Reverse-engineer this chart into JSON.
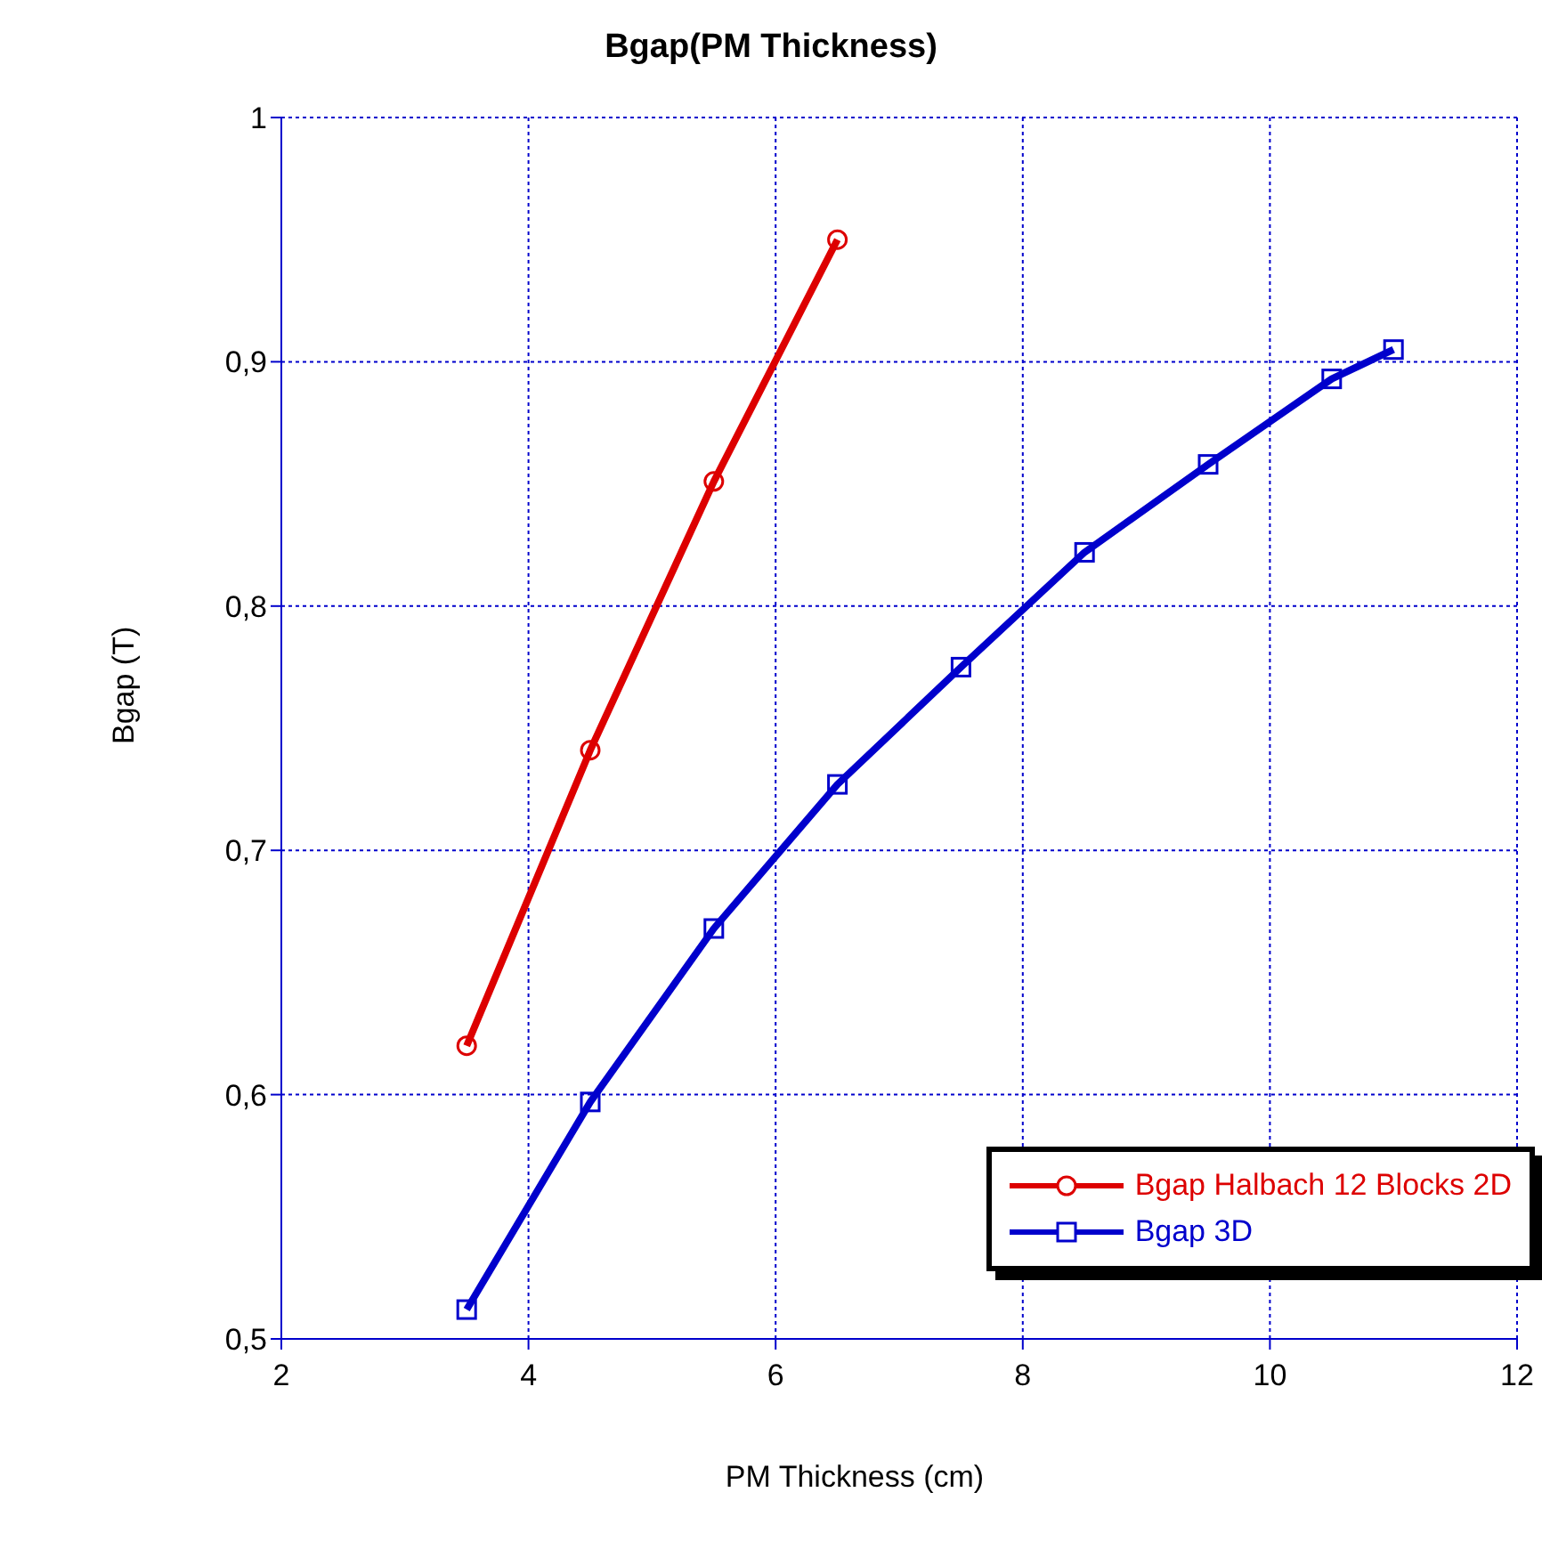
{
  "chart_data": {
    "type": "line",
    "title": "Bgap(PM Thickness)",
    "xlabel": "PM Thickness (cm)",
    "ylabel": "Bgap (T)",
    "xlim": [
      2,
      12
    ],
    "xticks": [
      2,
      4,
      6,
      8,
      10,
      12
    ],
    "ylim": [
      0.5,
      1
    ],
    "yticks": [
      {
        "value": 0.5,
        "label": "0,5"
      },
      {
        "value": 0.6,
        "label": "0,6"
      },
      {
        "value": 0.7,
        "label": "0,7"
      },
      {
        "value": 0.8,
        "label": "0,8"
      },
      {
        "value": 0.9,
        "label": "0,9"
      },
      {
        "value": 1,
        "label": "1"
      }
    ],
    "grid": true,
    "legend": "bottom right",
    "series": [
      {
        "name": "Bgap Halbach 12 Blocks 2D",
        "color": "#dd0000",
        "marker": "circle",
        "x": [
          3.5,
          4.5,
          5.5,
          6.5
        ],
        "values": [
          0.62,
          0.741,
          0.851,
          0.95
        ]
      },
      {
        "name": "Bgap 3D",
        "color": "#0000cc",
        "marker": "square",
        "x": [
          3.5,
          4.5,
          5.5,
          6.5,
          7.5,
          8.5,
          9.5,
          10.5,
          11
        ],
        "values": [
          0.512,
          0.597,
          0.668,
          0.727,
          0.775,
          0.822,
          0.858,
          0.893,
          0.905
        ]
      }
    ]
  }
}
